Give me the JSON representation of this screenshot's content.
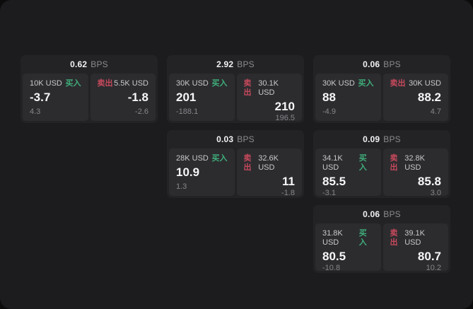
{
  "theme": {
    "page_bg": "#0c0c0d",
    "window_bg": "#1c1c1e",
    "card_bg": "#232325",
    "panel_bg": "#2c2c2f",
    "buy_color": "#3fae7a",
    "sell_color": "#c7495c",
    "value_color": "#f6f6f8",
    "label_color": "#c9c9cc",
    "muted_color": "#87878b"
  },
  "labels": {
    "bps": "BPS",
    "buy": "买入",
    "sell": "卖出"
  },
  "cards": [
    {
      "row": 1,
      "col": 1,
      "bps": "0.62",
      "buy": {
        "amount": "10K USD",
        "value": "-3.7",
        "sub": "4.3"
      },
      "sell": {
        "amount": "5.5K USD",
        "value": "-1.8",
        "sub": "-2.6"
      }
    },
    {
      "row": 1,
      "col": 2,
      "bps": "2.92",
      "buy": {
        "amount": "30K USD",
        "value": "201",
        "sub": "-188.1"
      },
      "sell": {
        "amount": "30.1K USD",
        "value": "210",
        "sub": "196.5"
      }
    },
    {
      "row": 1,
      "col": 3,
      "bps": "0.06",
      "buy": {
        "amount": "30K USD",
        "value": "88",
        "sub": "-4.9"
      },
      "sell": {
        "amount": "30K USD",
        "value": "88.2",
        "sub": "4.7"
      }
    },
    {
      "row": 2,
      "col": 2,
      "bps": "0.03",
      "buy": {
        "amount": "28K USD",
        "value": "10.9",
        "sub": "1.3"
      },
      "sell": {
        "amount": "32.6K USD",
        "value": "11",
        "sub": "-1.8"
      }
    },
    {
      "row": 2,
      "col": 3,
      "bps": "0.09",
      "buy": {
        "amount": "34.1K USD",
        "value": "85.5",
        "sub": "-3.1"
      },
      "sell": {
        "amount": "32.8K USD",
        "value": "85.8",
        "sub": "3.0"
      }
    },
    {
      "row": 3,
      "col": 3,
      "bps": "0.06",
      "buy": {
        "amount": "31.8K USD",
        "value": "80.5",
        "sub": "-10.8"
      },
      "sell": {
        "amount": "39.1K USD",
        "value": "80.7",
        "sub": "10.2"
      }
    }
  ]
}
